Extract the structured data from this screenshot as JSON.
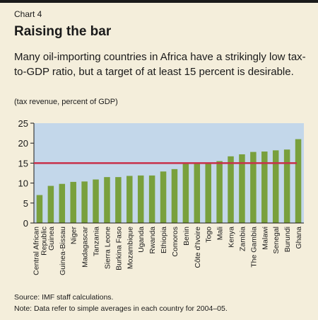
{
  "header": {
    "chart_label": "Chart 4",
    "title": "Raising the bar",
    "subtitle": "Many oil-importing countries in Africa have a strikingly low tax-to-GDP ratio, but a target of at least 15 percent is desirable.",
    "units": "(tax revenue, percent of GDP)"
  },
  "footer": {
    "source": "Source: IMF staff calculations.",
    "note": "Note: Data refer to simple averages in each country for 2004–05."
  },
  "colors": {
    "plot_background": "#c3d7ea",
    "bar": "#79a03c",
    "target_line": "#c8304a",
    "page_background": "#f4eedb"
  },
  "chart_data": {
    "type": "bar",
    "title": "Raising the bar",
    "ylabel": "",
    "xlabel": "",
    "ylim": [
      0,
      25
    ],
    "yticks": [
      0,
      5,
      10,
      15,
      20,
      25
    ],
    "grid": false,
    "categories": [
      "Central African Republic",
      "Guinea",
      "Guinea-Bissau",
      "Niger",
      "Madagascar",
      "Tanzania",
      "Sierra Leone",
      "Burkina Faso",
      "Mozambique",
      "Uganda",
      "Rwanda",
      "Ethiopia",
      "Comoros",
      "Benin",
      "Côte d'Ivoire",
      "Togo",
      "Mali",
      "Kenya",
      "Zambia",
      "The Gambia",
      "Malawi",
      "Senegal",
      "Burundi",
      "Ghana"
    ],
    "tick_labels": [
      [
        "Central African",
        "Republic"
      ],
      [
        "Guinea"
      ],
      [
        "Guinea-Bissau"
      ],
      [
        "Niger"
      ],
      [
        "Madagascar"
      ],
      [
        "Tanzania"
      ],
      [
        "Sierra Leone"
      ],
      [
        "Burkina Faso"
      ],
      [
        "Mozambique"
      ],
      [
        "Uganda"
      ],
      [
        "Rwanda"
      ],
      [
        "Ethiopia"
      ],
      [
        "Comoros"
      ],
      [
        "Benin"
      ],
      [
        "Côte d'Ivoire"
      ],
      [
        "Togo"
      ],
      [
        "Mali"
      ],
      [
        "Kenya"
      ],
      [
        "Zambia"
      ],
      [
        "The Gambia"
      ],
      [
        "Malawi"
      ],
      [
        "Senegal"
      ],
      [
        "Burundi"
      ],
      [
        "Ghana"
      ]
    ],
    "values": [
      7.0,
      9.3,
      9.8,
      10.3,
      10.4,
      10.9,
      11.5,
      11.5,
      11.8,
      11.9,
      11.9,
      12.9,
      13.5,
      14.8,
      14.8,
      14.8,
      15.5,
      16.7,
      17.2,
      17.8,
      17.9,
      18.2,
      18.4,
      21.0
    ],
    "reference_line": {
      "value": 15
    }
  }
}
